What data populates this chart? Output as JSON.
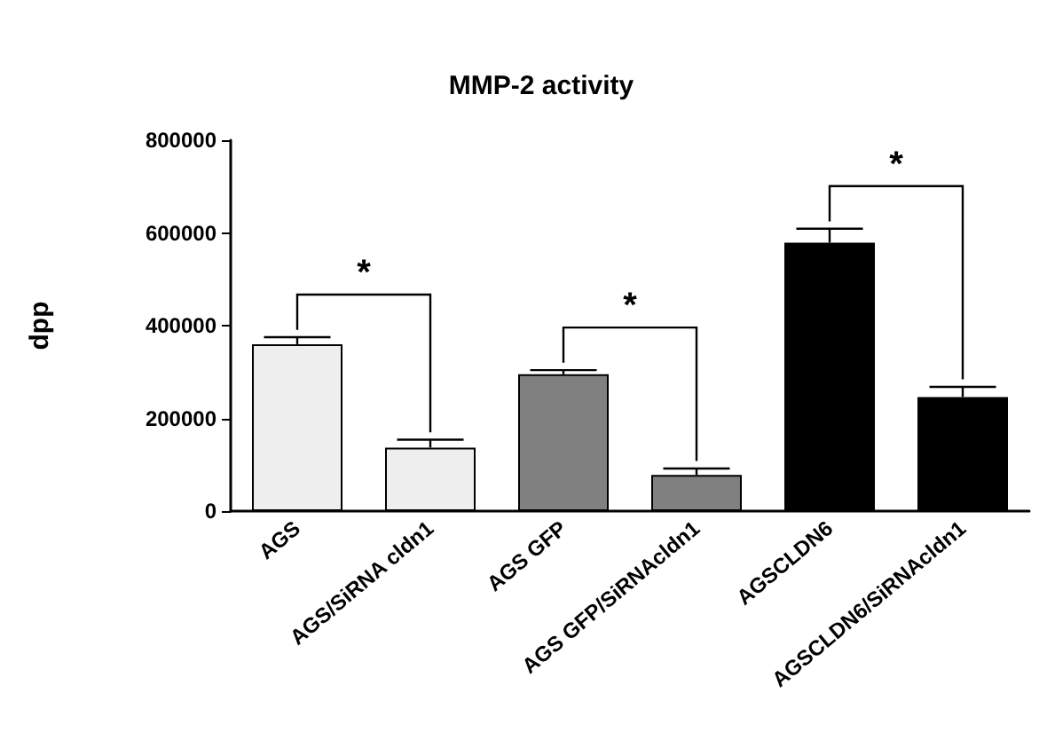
{
  "chart_data": {
    "type": "bar",
    "title": "MMP-2 activity",
    "ylabel": "dpp",
    "categories": [
      "AGS",
      "AGS/SiRNA cldn1",
      "AGS GFP",
      "AGS GFP/SiRNAcldn1",
      "AGSCLDN6",
      "AGSCLDN6/SiRNAcldn1"
    ],
    "values": [
      360000,
      137000,
      295000,
      78000,
      579000,
      246000
    ],
    "errors": [
      15000,
      17000,
      9000,
      14000,
      30000,
      22000
    ],
    "colors": [
      "#eeeeee",
      "#eeeeee",
      "#808080",
      "#808080",
      "#000000",
      "#000000"
    ],
    "ylim": [
      0,
      800000
    ],
    "yticks": [
      0,
      200000,
      400000,
      600000,
      800000
    ],
    "annotations": [
      "*",
      "*",
      "*"
    ],
    "grid": false
  }
}
